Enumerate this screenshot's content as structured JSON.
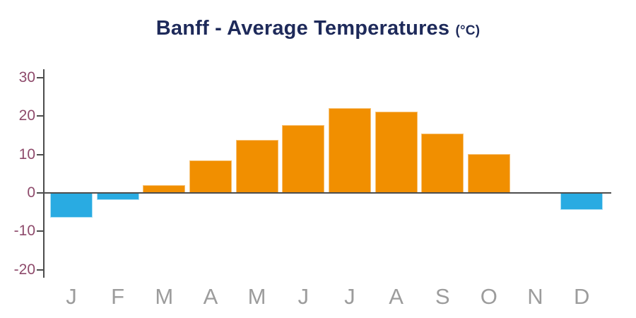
{
  "title": {
    "main": "Banff - Average Temperatures",
    "unit": "(°C)"
  },
  "chart_data": {
    "type": "bar",
    "title": "Banff - Average Temperatures (°C)",
    "categories": [
      "J",
      "F",
      "M",
      "A",
      "M",
      "J",
      "J",
      "A",
      "S",
      "O",
      "N",
      "D"
    ],
    "category_names": [
      "jan",
      "feb",
      "mar",
      "apr",
      "may",
      "jun",
      "jul",
      "aug",
      "sep",
      "oct",
      "nov",
      "dec"
    ],
    "values": [
      -6.4,
      -1.8,
      2.1,
      8.4,
      13.8,
      17.7,
      22.1,
      21.1,
      15.4,
      10.1,
      0,
      -4.4
    ],
    "xlabel": "",
    "ylabel": "",
    "yticks": [
      30,
      20,
      10,
      0,
      -10,
      -20
    ],
    "ylim": [
      -22,
      32
    ],
    "grid": false,
    "legend": "none",
    "colors": {
      "bar_positive": "#F18F00",
      "bar_positive_edge": "#F7C275",
      "bar_negative": "#29ABE2",
      "bar_negative_edge": "#A9DFF5",
      "axis": "#4D4D4D",
      "y_tick_label": "#8E4A6B",
      "x_label": "#9C9C9C",
      "title": "#1E2A5A",
      "background": "#FFFFFF"
    }
  }
}
